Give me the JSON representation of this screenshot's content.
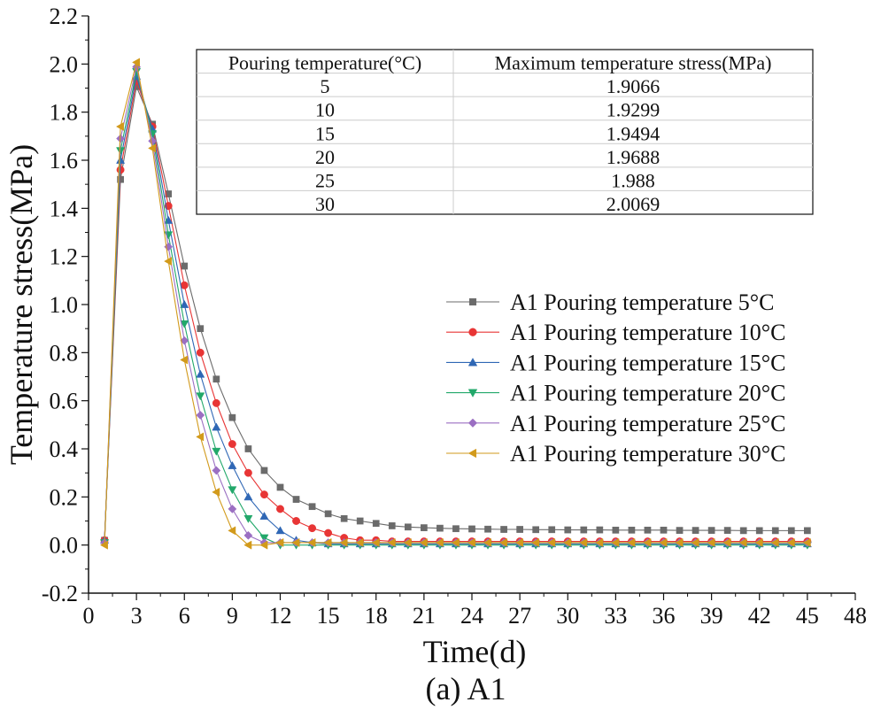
{
  "chart_data": {
    "type": "line",
    "title": "",
    "caption": "(a) A1",
    "xlabel": "Time(d)",
    "ylabel": "Temperature stress(MPa)",
    "xlim": [
      0,
      48
    ],
    "ylim": [
      -0.2,
      2.2
    ],
    "x_ticks": [
      "0",
      "3",
      "6",
      "9",
      "12",
      "15",
      "18",
      "21",
      "24",
      "27",
      "30",
      "33",
      "36",
      "39",
      "42",
      "45",
      "48"
    ],
    "y_ticks": [
      "-0.2",
      "0.0",
      "0.2",
      "0.4",
      "0.6",
      "0.8",
      "1.0",
      "1.2",
      "1.4",
      "1.6",
      "1.8",
      "2.0",
      "2.2"
    ],
    "grid": false,
    "legend_position": "center-right",
    "series": [
      {
        "name": "A1 Pouring temperature 5°C",
        "color": "#6b6b6b",
        "marker": "square",
        "x": [
          1,
          2,
          3,
          4,
          5,
          6,
          7,
          8,
          9,
          10,
          11,
          12,
          13,
          14,
          15,
          16,
          17,
          18,
          19,
          20,
          21,
          22,
          23,
          24,
          25,
          26,
          27,
          28,
          29,
          30,
          31,
          32,
          33,
          34,
          35,
          36,
          37,
          38,
          39,
          40,
          41,
          42,
          43,
          44,
          45
        ],
        "values": [
          0.02,
          1.52,
          1.906,
          1.75,
          1.46,
          1.16,
          0.9,
          0.69,
          0.53,
          0.4,
          0.31,
          0.24,
          0.19,
          0.16,
          0.13,
          0.11,
          0.1,
          0.09,
          0.08,
          0.075,
          0.072,
          0.07,
          0.068,
          0.067,
          0.066,
          0.065,
          0.065,
          0.064,
          0.064,
          0.063,
          0.063,
          0.063,
          0.062,
          0.062,
          0.062,
          0.062,
          0.061,
          0.061,
          0.061,
          0.061,
          0.06,
          0.06,
          0.06,
          0.06,
          0.06
        ]
      },
      {
        "name": "A1 Pouring temperature 10°C",
        "color": "#e83535",
        "marker": "circle",
        "x": [
          1,
          2,
          3,
          4,
          5,
          6,
          7,
          8,
          9,
          10,
          11,
          12,
          13,
          14,
          15,
          16,
          17,
          18,
          19,
          20,
          21,
          22,
          23,
          24,
          25,
          26,
          27,
          28,
          29,
          30,
          31,
          32,
          33,
          34,
          35,
          36,
          37,
          38,
          39,
          40,
          41,
          42,
          43,
          44,
          45
        ],
        "values": [
          0.02,
          1.56,
          1.93,
          1.74,
          1.41,
          1.08,
          0.8,
          0.59,
          0.42,
          0.3,
          0.21,
          0.15,
          0.1,
          0.07,
          0.05,
          0.03,
          0.02,
          0.02,
          0.015,
          0.015,
          0.015,
          0.015,
          0.015,
          0.015,
          0.015,
          0.015,
          0.015,
          0.015,
          0.015,
          0.015,
          0.015,
          0.015,
          0.015,
          0.015,
          0.015,
          0.015,
          0.015,
          0.015,
          0.015,
          0.015,
          0.015,
          0.015,
          0.015,
          0.015,
          0.015
        ]
      },
      {
        "name": "A1 Pouring temperature 15°C",
        "color": "#2f67b5",
        "marker": "triangle-up",
        "x": [
          1,
          2,
          3,
          4,
          5,
          6,
          7,
          8,
          9,
          10,
          11,
          12,
          13,
          14,
          15,
          16,
          17,
          18,
          19,
          20,
          21,
          22,
          23,
          24,
          25,
          26,
          27,
          28,
          29,
          30,
          31,
          32,
          33,
          34,
          35,
          36,
          37,
          38,
          39,
          40,
          41,
          42,
          43,
          44,
          45
        ],
        "values": [
          0.02,
          1.6,
          1.949,
          1.73,
          1.35,
          1.0,
          0.71,
          0.49,
          0.33,
          0.2,
          0.12,
          0.06,
          0.02,
          0.01,
          0.005,
          0.005,
          0.005,
          0.005,
          0.005,
          0.005,
          0.005,
          0.005,
          0.005,
          0.005,
          0.005,
          0.005,
          0.005,
          0.005,
          0.005,
          0.005,
          0.005,
          0.005,
          0.005,
          0.005,
          0.005,
          0.005,
          0.005,
          0.005,
          0.005,
          0.005,
          0.005,
          0.005,
          0.005,
          0.005,
          0.005
        ]
      },
      {
        "name": "A1 Pouring temperature 20°C",
        "color": "#22a86a",
        "marker": "triangle-down",
        "x": [
          1,
          2,
          3,
          4,
          5,
          6,
          7,
          8,
          9,
          10,
          11,
          12,
          13,
          14,
          15,
          16,
          17,
          18,
          19,
          20,
          21,
          22,
          23,
          24,
          25,
          26,
          27,
          28,
          29,
          30,
          31,
          32,
          33,
          34,
          35,
          36,
          37,
          38,
          39,
          40,
          41,
          42,
          43,
          44,
          45
        ],
        "values": [
          0.01,
          1.64,
          1.969,
          1.71,
          1.29,
          0.92,
          0.62,
          0.39,
          0.23,
          0.11,
          0.03,
          0.0,
          0.0,
          0.0,
          0.0,
          0.0,
          0.0,
          0.0,
          0.0,
          0.0,
          0.0,
          0.0,
          0.0,
          0.0,
          0.0,
          0.0,
          0.0,
          0.0,
          0.0,
          0.0,
          0.0,
          0.0,
          0.0,
          0.0,
          0.0,
          0.0,
          0.0,
          0.0,
          0.0,
          0.0,
          0.0,
          0.0,
          0.0,
          0.0,
          0.0
        ]
      },
      {
        "name": "A1 Pouring temperature 25°C",
        "color": "#9b6fc2",
        "marker": "diamond",
        "x": [
          1,
          2,
          3,
          4,
          5,
          6,
          7,
          8,
          9,
          10,
          11,
          12,
          13,
          14,
          15,
          16,
          17,
          18,
          19,
          20,
          21,
          22,
          23,
          24,
          25,
          26,
          27,
          28,
          29,
          30,
          31,
          32,
          33,
          34,
          35,
          36,
          37,
          38,
          39,
          40,
          41,
          42,
          43,
          44,
          45
        ],
        "values": [
          0.01,
          1.69,
          1.988,
          1.68,
          1.24,
          0.85,
          0.54,
          0.31,
          0.15,
          0.04,
          0.01,
          0.01,
          0.01,
          0.01,
          0.01,
          0.01,
          0.01,
          0.01,
          0.01,
          0.01,
          0.01,
          0.01,
          0.01,
          0.01,
          0.01,
          0.01,
          0.01,
          0.01,
          0.01,
          0.01,
          0.01,
          0.01,
          0.01,
          0.01,
          0.01,
          0.01,
          0.01,
          0.01,
          0.01,
          0.01,
          0.01,
          0.01,
          0.01,
          0.01,
          0.01
        ]
      },
      {
        "name": "A1 Pouring temperature 30°C",
        "color": "#d29a1b",
        "marker": "triangle-left",
        "x": [
          1,
          2,
          3,
          4,
          5,
          6,
          7,
          8,
          9,
          10,
          11,
          12,
          13,
          14,
          15,
          16,
          17,
          18,
          19,
          20,
          21,
          22,
          23,
          24,
          25,
          26,
          27,
          28,
          29,
          30,
          31,
          32,
          33,
          34,
          35,
          36,
          37,
          38,
          39,
          40,
          41,
          42,
          43,
          44,
          45
        ],
        "values": [
          0.0,
          1.74,
          2.007,
          1.65,
          1.18,
          0.77,
          0.45,
          0.22,
          0.06,
          0.0,
          0.0,
          0.01,
          0.01,
          0.01,
          0.01,
          0.01,
          0.01,
          0.01,
          0.01,
          0.01,
          0.01,
          0.01,
          0.01,
          0.01,
          0.01,
          0.01,
          0.01,
          0.01,
          0.01,
          0.01,
          0.01,
          0.01,
          0.01,
          0.01,
          0.01,
          0.01,
          0.01,
          0.01,
          0.01,
          0.01,
          0.01,
          0.01,
          0.01,
          0.01,
          0.01
        ]
      }
    ],
    "table": {
      "headers": [
        "Pouring temperature(°C)",
        "Maximum temperature stress(MPa)"
      ],
      "rows": [
        [
          "5",
          "1.9066"
        ],
        [
          "10",
          "1.9299"
        ],
        [
          "15",
          "1.9494"
        ],
        [
          "20",
          "1.9688"
        ],
        [
          "25",
          "1.988"
        ],
        [
          "30",
          "2.0069"
        ]
      ]
    }
  }
}
